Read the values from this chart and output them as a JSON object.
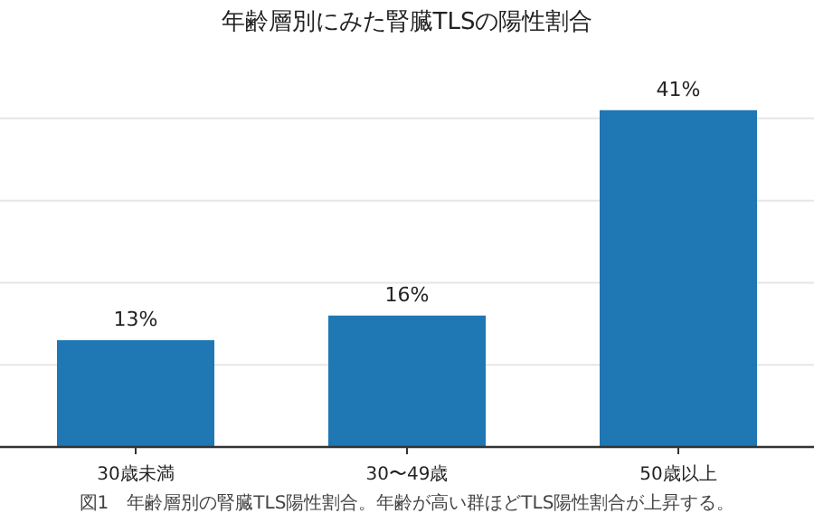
{
  "chart_data": {
    "type": "bar",
    "title": "年齢層別にみた腎臓TLSの陽性割合",
    "categories": [
      "30歳未満",
      "30〜49歳",
      "50歳以上"
    ],
    "values": [
      13,
      16,
      41
    ],
    "color": "#1f77b4",
    "value_labels": [
      "13%",
      "16%",
      "41%"
    ],
    "yticks": [
      {
        "value": 0,
        "label": null
      },
      {
        "value": 10,
        "label": null
      },
      {
        "value": 20,
        "label": null
      },
      {
        "value": 30,
        "label": null
      },
      {
        "value": 40,
        "label": null
      }
    ],
    "grid": "y",
    "tick_labels": "x",
    "annotations": [
      "図1　年齢層別の腎臓TLS陽性割合。年齢が高い群ほどTLS陽性割合が上昇する。"
    ]
  }
}
